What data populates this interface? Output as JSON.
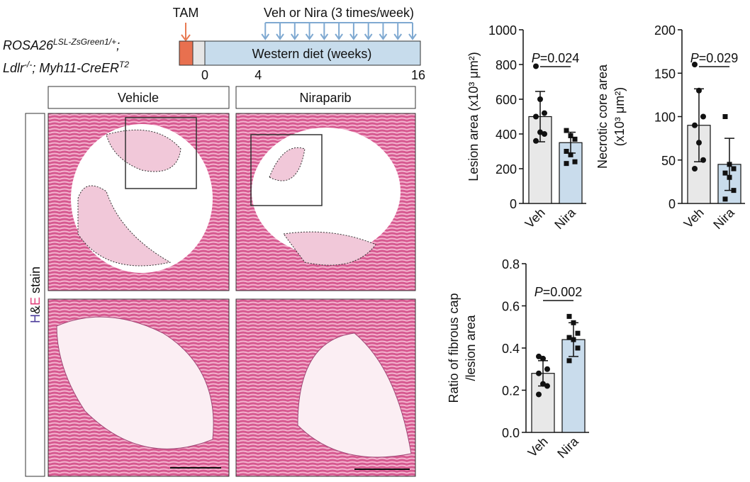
{
  "timeline": {
    "tam": "TAM",
    "treatment": "Veh or Nira (3 times/week)",
    "diet": "Western diet (weeks)",
    "xlim": [
      0,
      16
    ],
    "ticks": [
      0,
      4,
      16
    ],
    "genotype": [
      [
        "ROSA26",
        "LSL-ZsGreen1/+",
        ";"
      ],
      [
        "Ldlr",
        "-/-",
        "; Myh11-CreER",
        "T2"
      ]
    ]
  },
  "histology": {
    "columns": [
      "Vehicle",
      "Niraparib"
    ],
    "stain": [
      "H",
      "&",
      "E",
      " stain"
    ]
  },
  "chart_data": [
    {
      "type": "bar",
      "ylabel": [
        "Lesion area (x10³ μm²)"
      ],
      "categories": [
        "Veh",
        "Nira"
      ],
      "values": [
        500,
        350
      ],
      "errors": [
        145,
        60
      ],
      "points": [
        [
          790,
          600,
          520,
          500,
          410,
          400,
          360
        ],
        [
          420,
          390,
          370,
          300,
          280,
          240,
          230
        ]
      ],
      "colors": [
        "#e8e8e8",
        "#c9dcec"
      ],
      "annotation": [
        "P",
        "=0.024"
      ],
      "ylim": [
        0,
        1000
      ],
      "yticks": [
        0,
        200,
        400,
        600,
        800,
        1000
      ]
    },
    {
      "type": "bar",
      "ylabel": [
        "Necrotic core area",
        "(x10³ μm²)"
      ],
      "categories": [
        "Veh",
        "Nira"
      ],
      "values": [
        90,
        45
      ],
      "errors": [
        42,
        30
      ],
      "points": [
        [
          160,
          130,
          100,
          90,
          70,
          50,
          40
        ],
        [
          100,
          45,
          40,
          35,
          30,
          15,
          5
        ]
      ],
      "colors": [
        "#e8e8e8",
        "#c9dcec"
      ],
      "annotation": [
        "P",
        "=0.029"
      ],
      "ylim": [
        0,
        200
      ],
      "yticks": [
        0,
        50,
        100,
        150,
        200
      ]
    },
    {
      "type": "bar",
      "ylabel": [
        "Ratio of fibrous cap",
        "/lesion area"
      ],
      "categories": [
        "Veh",
        "Nira"
      ],
      "values": [
        0.28,
        0.44
      ],
      "errors": [
        0.06,
        0.08
      ],
      "points": [
        [
          0.36,
          0.35,
          0.3,
          0.28,
          0.23,
          0.22,
          0.18
        ],
        [
          0.55,
          0.52,
          0.47,
          0.45,
          0.44,
          0.4,
          0.34
        ]
      ],
      "colors": [
        "#e8e8e8",
        "#c9dcec"
      ],
      "annotation": [
        "P",
        "=0.002"
      ],
      "ylim": [
        0,
        0.8
      ],
      "yticks": [
        {
          "value": 0,
          "label": "0.0"
        },
        0.2,
        0.4,
        0.6,
        0.8
      ]
    }
  ]
}
